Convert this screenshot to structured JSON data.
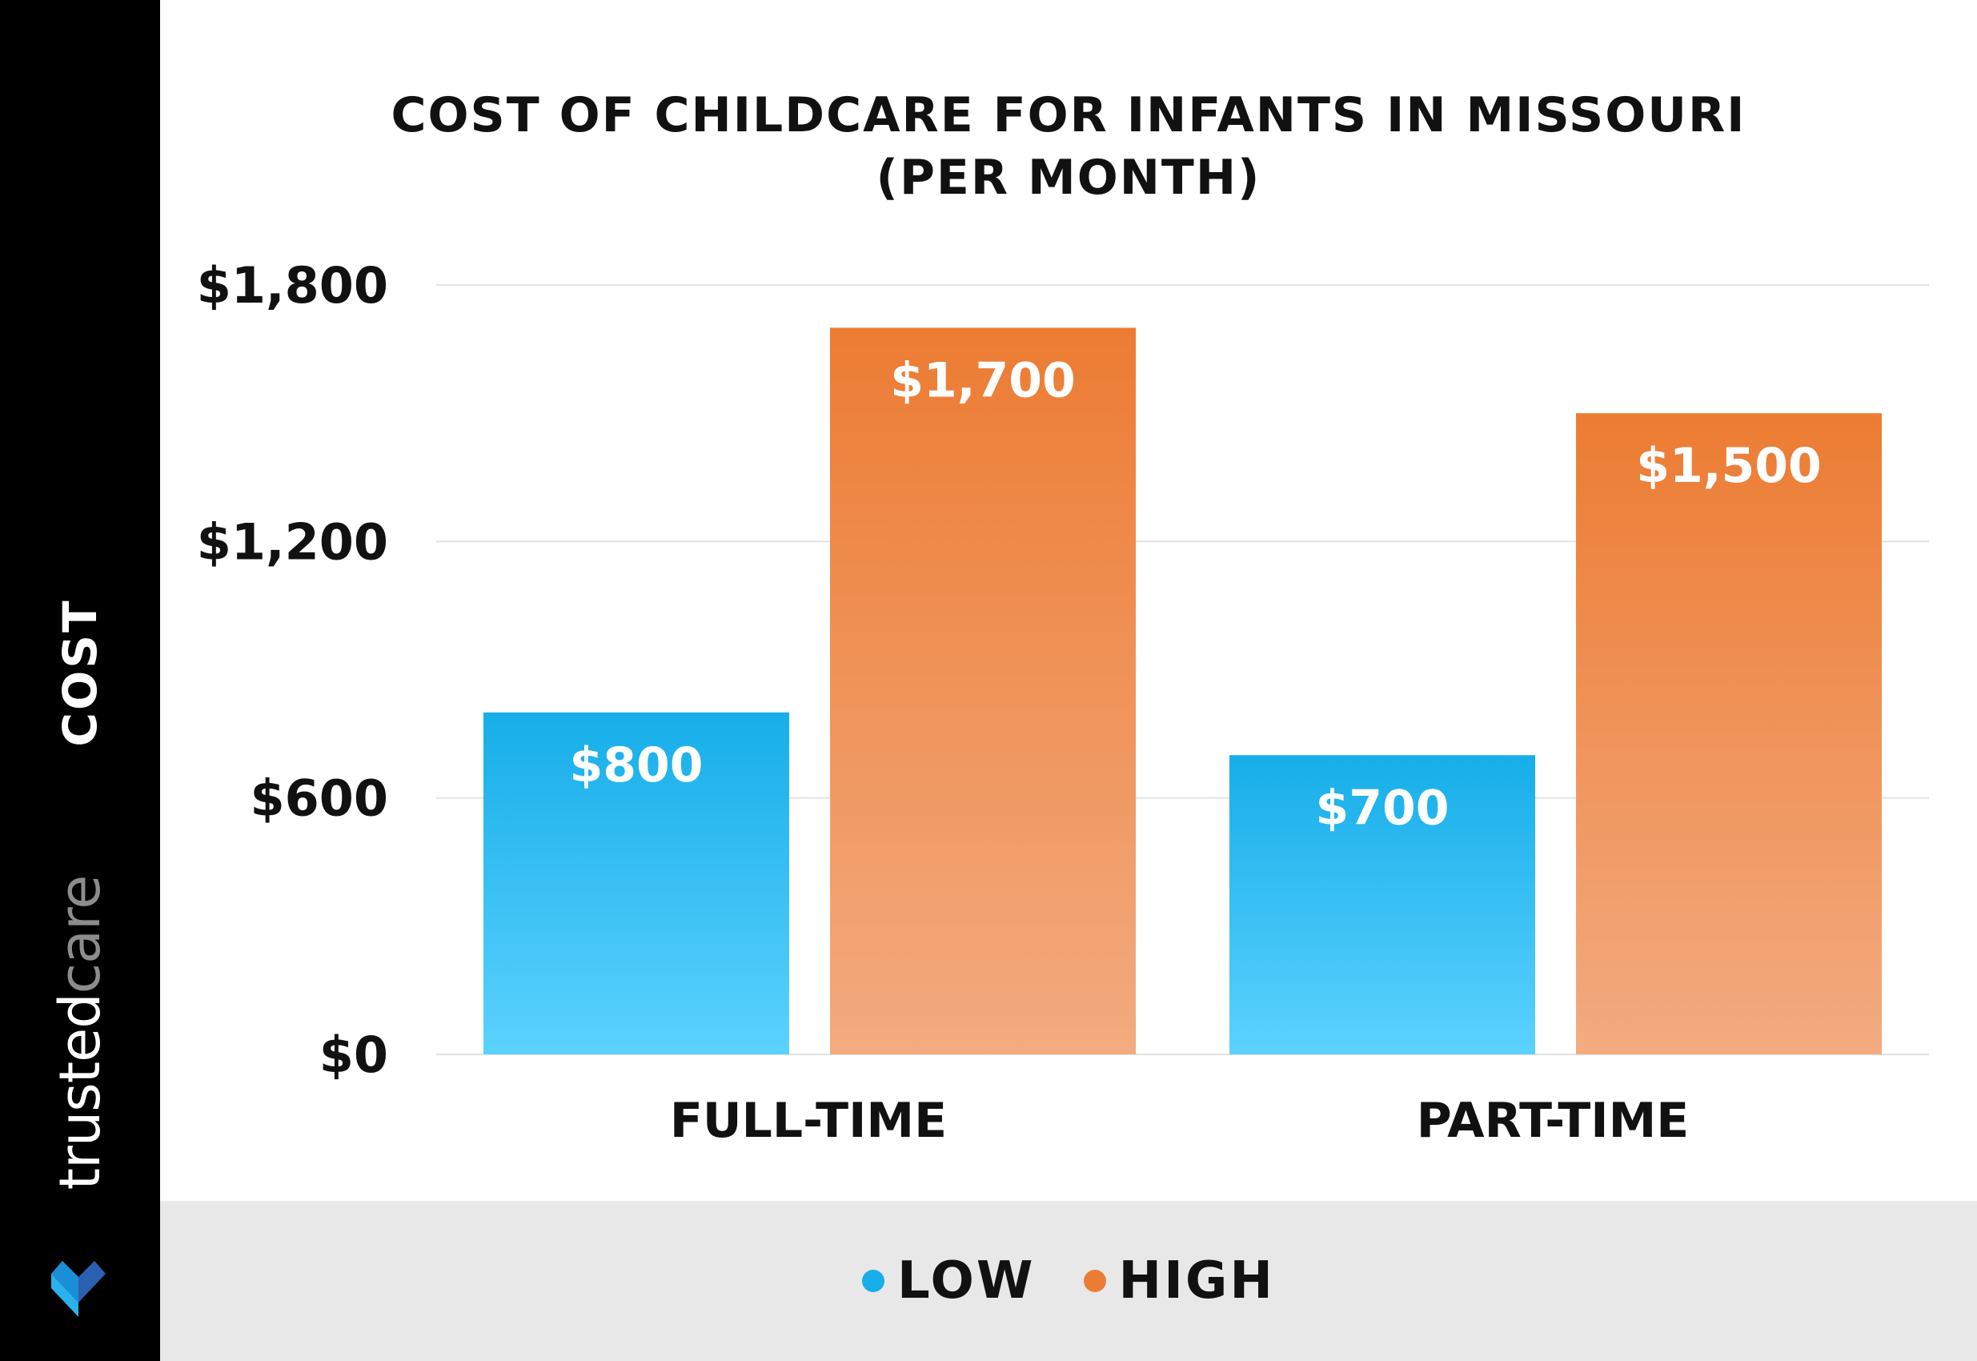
{
  "brand": {
    "name_bold": "trusted",
    "name_light": "care"
  },
  "colors": {
    "low": "#17aee9",
    "low_light": "#5bd2fe",
    "high": "#ec7c33",
    "high_light": "#f3ab80",
    "sidebar": "#000000",
    "legend_band": "#e8e8e8"
  },
  "legend": {
    "items": [
      {
        "label": "LOW",
        "color": "#17aee9"
      },
      {
        "label": "HIGH",
        "color": "#ec7c33"
      }
    ]
  },
  "chart_data": {
    "type": "bar",
    "title_line1": "COST OF CHILDCARE FOR INFANTS IN MISSOURI",
    "title_line2": "(PER MONTH)",
    "xlabel": "",
    "ylabel": "COST",
    "categories": [
      "FULL-TIME",
      "PART-TIME"
    ],
    "series": [
      {
        "name": "LOW",
        "values": [
          800,
          700
        ],
        "labels": [
          "$800",
          "$700"
        ]
      },
      {
        "name": "HIGH",
        "values": [
          1700,
          1500
        ],
        "labels": [
          "$1,700",
          "$1,500"
        ]
      }
    ],
    "ylim": [
      0,
      1800
    ],
    "yticks": [
      0,
      600,
      1200,
      1800
    ],
    "ytick_labels": [
      "$0",
      "$600",
      "$1,200",
      "$1,800"
    ],
    "grid": true,
    "legend_position": "bottom"
  }
}
